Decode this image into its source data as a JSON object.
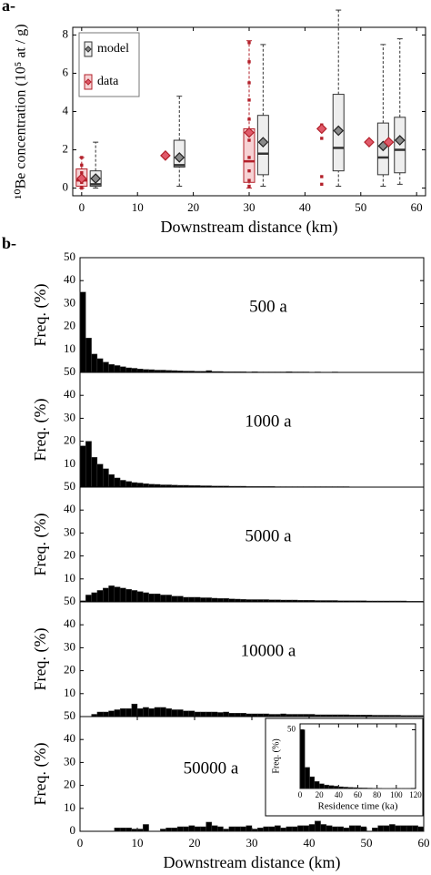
{
  "chart_data": [
    {
      "type": "box",
      "panel_label": "a-",
      "xlabel": "Downstream distance (km)",
      "ylabel": "¹⁰Be concentration (10⁵ at / g)",
      "xlim": [
        -1.6,
        61.6
      ],
      "xticks": [
        0,
        10,
        20,
        30,
        40,
        50,
        60
      ],
      "ylim": [
        -0.4,
        8.4
      ],
      "yticks": [
        0,
        2,
        4,
        6,
        8
      ],
      "legend": "upper left",
      "series": [
        {
          "name": "model",
          "color": "#eeeeee",
          "edge": "#333333",
          "marker": "#8a8a8a",
          "positions": [
            2.5,
            17.5,
            32.5,
            46,
            54,
            57
          ],
          "whislo": [
            0,
            0.1,
            0.1,
            0.1,
            0.1,
            0.2
          ],
          "q1": [
            0.1,
            1.1,
            0.7,
            0.9,
            0.7,
            0.8
          ],
          "median": [
            0.2,
            1.2,
            1.8,
            2.1,
            1.6,
            2.0
          ],
          "q3": [
            0.9,
            2.5,
            3.8,
            4.9,
            3.4,
            3.7
          ],
          "whishi": [
            2.4,
            4.8,
            7.5,
            9.3,
            7.5,
            7.8
          ],
          "mean": [
            0.5,
            1.6,
            2.4,
            3.0,
            2.2,
            2.5
          ]
        },
        {
          "name": "data",
          "color": "#f6d2d4",
          "edge": "#b3202a",
          "marker": "#e05a6a",
          "positions": [
            0,
            15,
            30,
            43,
            51.5,
            55
          ],
          "whislo": [
            0,
            null,
            0,
            null,
            null,
            null
          ],
          "q1": [
            0.1,
            null,
            0.3,
            null,
            null,
            null
          ],
          "median": [
            0.4,
            null,
            1.4,
            null,
            null,
            null
          ],
          "q3": [
            1.0,
            null,
            3.1,
            null,
            null,
            null
          ],
          "whishi": [
            1.6,
            null,
            7.7,
            null,
            null,
            null
          ],
          "mean": [
            0.5,
            1.7,
            2.9,
            3.1,
            2.4,
            2.4
          ],
          "points": {
            "x": [
              0,
              0,
              0,
              0,
              0,
              30,
              30,
              30,
              30,
              30,
              30,
              30,
              30,
              30,
              30,
              43,
              43,
              43,
              43
            ],
            "y": [
              0,
              0.3,
              0.8,
              1.2,
              1.6,
              7.6,
              6.6,
              5.5,
              4.6,
              3.6,
              2.5,
              1.6,
              0.9,
              0.4,
              0.1,
              0.2,
              0.6,
              2.6,
              3.3
            ]
          }
        }
      ]
    },
    {
      "type": "histogram",
      "panel_label": "b-",
      "annotation": "500 a",
      "ylabel": "Freq. (%)",
      "color": "#000000",
      "xlim": [
        0,
        60
      ],
      "ylim": [
        0,
        50
      ],
      "yticks": [
        10,
        20,
        30,
        40,
        50
      ],
      "bins": [
        0,
        1,
        2,
        3,
        4,
        5,
        6,
        7,
        8,
        9,
        10,
        11,
        12,
        13,
        14,
        15,
        16,
        17,
        18,
        19,
        20,
        21,
        22,
        23,
        24,
        25,
        26,
        27,
        28,
        29,
        30,
        31,
        32,
        33,
        34,
        35,
        36,
        37,
        38,
        39,
        40,
        41,
        42,
        43,
        44,
        45,
        46,
        47,
        48,
        49,
        50,
        51,
        52,
        53,
        54,
        55,
        56,
        57,
        58,
        59,
        60
      ],
      "values": [
        35,
        15,
        8,
        6,
        4.5,
        3.5,
        3,
        2.5,
        2,
        1.8,
        1.5,
        1.3,
        1.2,
        1,
        1,
        0.9,
        0.8,
        0.7,
        0.6,
        0.6,
        0.5,
        0.5,
        0.8,
        0.4,
        0.4,
        0.3,
        0.3,
        0.3,
        0.3,
        0.2,
        0.3,
        0.2,
        0.2,
        0.2,
        0.2,
        0.2,
        0.3,
        0.2,
        0.2,
        0.2,
        0.1,
        0.2,
        0.1,
        0.1,
        0.2,
        0.1,
        0.1,
        0.1,
        0.1,
        0.1,
        0.1,
        0.1,
        0.1,
        0.1,
        0.1,
        0.1,
        0.1,
        0.1,
        0.1,
        0.1
      ]
    },
    {
      "type": "histogram",
      "annotation": "1000 a",
      "ylabel": "Freq. (%)",
      "color": "#000000",
      "xlim": [
        0,
        60
      ],
      "ylim": [
        0,
        50
      ],
      "yticks": [
        10,
        20,
        30,
        40,
        50
      ],
      "bins": [
        0,
        1,
        2,
        3,
        4,
        5,
        6,
        7,
        8,
        9,
        10,
        11,
        12,
        13,
        14,
        15,
        16,
        17,
        18,
        19,
        20,
        21,
        22,
        23,
        24,
        25,
        26,
        27,
        28,
        29,
        30,
        31,
        32,
        33,
        34,
        35,
        36,
        37,
        38,
        39,
        40,
        41,
        42,
        43,
        44,
        45,
        46,
        47,
        48,
        49,
        50,
        51,
        52,
        53,
        54,
        55,
        56,
        57,
        58,
        59,
        60
      ],
      "values": [
        18,
        20,
        13,
        10,
        8,
        5.5,
        4,
        3,
        2.5,
        2,
        1.8,
        1.5,
        1.3,
        1.2,
        1,
        1,
        0.9,
        0.8,
        0.8,
        0.7,
        0.7,
        0.6,
        0.6,
        0.5,
        0.5,
        0.5,
        0.4,
        0.4,
        0.4,
        0.3,
        0.3,
        0.3,
        0.3,
        0.3,
        0.2,
        0.2,
        0.2,
        0.2,
        0.2,
        0.2,
        0.2,
        0.2,
        0.2,
        0.2,
        0.2,
        0.2,
        0.2,
        0.1,
        0.1,
        0.1,
        0.1,
        0.1,
        0.1,
        0.1,
        0.1,
        0.1,
        0.1,
        0.1,
        0.1,
        0.1
      ]
    },
    {
      "type": "histogram",
      "annotation": "5000 a",
      "ylabel": "Freq. (%)",
      "color": "#000000",
      "xlim": [
        0,
        60
      ],
      "ylim": [
        0,
        50
      ],
      "yticks": [
        10,
        20,
        30,
        40,
        50
      ],
      "bins": [
        0,
        1,
        2,
        3,
        4,
        5,
        6,
        7,
        8,
        9,
        10,
        11,
        12,
        13,
        14,
        15,
        16,
        17,
        18,
        19,
        20,
        21,
        22,
        23,
        24,
        25,
        26,
        27,
        28,
        29,
        30,
        31,
        32,
        33,
        34,
        35,
        36,
        37,
        38,
        39,
        40,
        41,
        42,
        43,
        44,
        45,
        46,
        47,
        48,
        49,
        50,
        51,
        52,
        53,
        54,
        55,
        56,
        57,
        58,
        59,
        60
      ],
      "values": [
        0.5,
        3,
        4,
        5,
        6,
        7,
        6.5,
        6,
        5.5,
        5,
        4.5,
        4,
        3.5,
        3.5,
        3,
        3,
        2.5,
        2.5,
        2,
        2,
        2,
        1.8,
        1.8,
        1.6,
        1.5,
        1.5,
        1.3,
        1.2,
        1.1,
        1,
        1,
        1,
        1,
        0.9,
        0.9,
        0.8,
        0.8,
        0.8,
        0.7,
        0.7,
        0.7,
        0.6,
        0.6,
        0.6,
        0.6,
        0.5,
        0.5,
        0.5,
        0.5,
        0.5,
        0.4,
        0.4,
        0.4,
        0.4,
        0.4,
        0.4,
        0.4,
        0.3,
        0.3,
        0.3
      ]
    },
    {
      "type": "histogram",
      "annotation": "10000 a",
      "ylabel": "Freq. (%)",
      "color": "#000000",
      "xlim": [
        0,
        60
      ],
      "ylim": [
        0,
        50
      ],
      "yticks": [
        10,
        20,
        30,
        40,
        50
      ],
      "bins": [
        0,
        1,
        2,
        3,
        4,
        5,
        6,
        7,
        8,
        9,
        10,
        11,
        12,
        13,
        14,
        15,
        16,
        17,
        18,
        19,
        20,
        21,
        22,
        23,
        24,
        25,
        26,
        27,
        28,
        29,
        30,
        31,
        32,
        33,
        34,
        35,
        36,
        37,
        38,
        39,
        40,
        41,
        42,
        43,
        44,
        45,
        46,
        47,
        48,
        49,
        50,
        51,
        52,
        53,
        54,
        55,
        56,
        57,
        58,
        59,
        60
      ],
      "values": [
        0,
        0,
        1,
        2,
        2,
        2.5,
        3,
        3.5,
        3.5,
        5.5,
        3.5,
        4,
        3.5,
        4,
        4,
        3.5,
        3,
        3,
        2.5,
        2.5,
        2,
        2,
        2,
        2,
        1.8,
        2,
        1.5,
        1.5,
        1.5,
        1.2,
        1.2,
        1.2,
        1.2,
        1,
        1,
        1.2,
        1,
        1,
        1,
        1,
        1,
        0.8,
        0.8,
        0.8,
        0.8,
        0.8,
        0.8,
        0.7,
        0.7,
        0.7,
        0.7,
        0.6,
        0.6,
        0.6,
        0.6,
        0.6,
        0.5,
        0.5,
        0.5,
        0.5
      ]
    },
    {
      "type": "histogram",
      "annotation": "50000 a",
      "ylabel": "Freq. (%)",
      "xlabel": "Downstream distance (km)",
      "color": "#000000",
      "xlim": [
        0,
        60
      ],
      "xticks": [
        0,
        10,
        20,
        30,
        40,
        50,
        60
      ],
      "ylim": [
        0,
        50
      ],
      "yticks": [
        0,
        10,
        20,
        30,
        40,
        50
      ],
      "bins": [
        0,
        1,
        2,
        3,
        4,
        5,
        6,
        7,
        8,
        9,
        10,
        11,
        12,
        13,
        14,
        15,
        16,
        17,
        18,
        19,
        20,
        21,
        22,
        23,
        24,
        25,
        26,
        27,
        28,
        29,
        30,
        31,
        32,
        33,
        34,
        35,
        36,
        37,
        38,
        39,
        40,
        41,
        42,
        43,
        44,
        45,
        46,
        47,
        48,
        49,
        50,
        51,
        52,
        53,
        54,
        55,
        56,
        57,
        58,
        59,
        60
      ],
      "values": [
        0,
        0,
        0,
        0,
        0,
        0,
        1.5,
        1.5,
        1.5,
        1,
        1,
        3,
        0,
        0,
        1,
        1.5,
        1.5,
        2,
        2,
        2.5,
        2,
        2,
        4,
        2.5,
        2,
        1,
        2,
        2,
        2,
        2.5,
        1,
        1.5,
        2,
        2,
        2.5,
        1.5,
        2,
        2,
        2.5,
        2.5,
        3,
        4.5,
        3,
        2.5,
        2,
        2,
        1.5,
        2.5,
        2.5,
        2,
        0,
        1.5,
        2.5,
        2.5,
        3,
        2.5,
        2.5,
        2.5,
        2.5,
        2
      ]
    },
    {
      "type": "histogram",
      "ylabel": "Freq. (%)",
      "xlabel": "Residence time (ka)",
      "color": "#000000",
      "xlim": [
        0,
        120
      ],
      "xticks": [
        0,
        20,
        40,
        60,
        80,
        100,
        120
      ],
      "ylim": [
        0,
        55
      ],
      "yticks": [
        50
      ],
      "bins": [
        0,
        5,
        10,
        15,
        20,
        25,
        30,
        35,
        40,
        45,
        50,
        55,
        60,
        65,
        70,
        75,
        80,
        85,
        90,
        95,
        100,
        105,
        110,
        115,
        120
      ],
      "values": [
        50,
        18,
        10,
        6,
        4,
        3,
        2.5,
        2,
        1.5,
        1.2,
        1,
        0.8,
        0.6,
        0.5,
        0.4,
        0.3,
        0.3,
        0.2,
        0.2,
        0.1,
        0.1,
        0.1,
        0.1,
        0
      ]
    }
  ]
}
